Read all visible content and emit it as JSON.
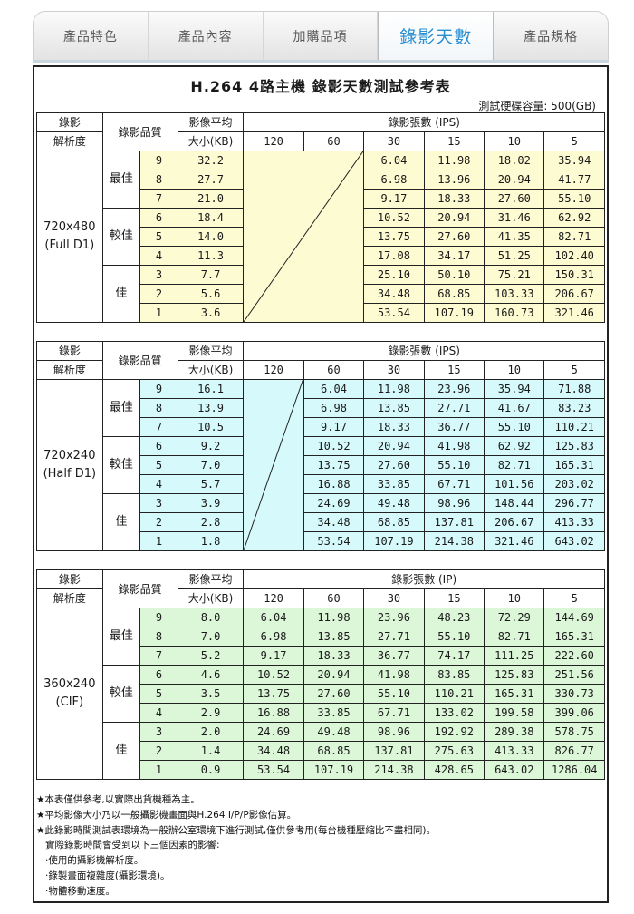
{
  "tabs": [
    {
      "label": "產品特色",
      "active": false
    },
    {
      "label": "產品內容",
      "active": false
    },
    {
      "label": "加購品項",
      "active": false
    },
    {
      "label": "錄影天數",
      "active": true
    },
    {
      "label": "產品規格",
      "active": false
    }
  ],
  "title": "H.264 4路主機 錄影天數測試參考表",
  "capacity": "測試硬碟容量: 500(GB)",
  "header": {
    "res_line1": "錄影",
    "res_line2": "解析度",
    "quality": "錄影品質",
    "avg_line1": "影像平均",
    "avg_line2": "大小(KB)",
    "fps_cols": [
      "120",
      "60",
      "30",
      "15",
      "10",
      "5"
    ]
  },
  "tables": [
    {
      "fps_title": "錄影張數 (IPS)",
      "resolution_line1": "720x480",
      "resolution_line2": "(Full D1)",
      "groups": [
        "最佳",
        "較佳",
        "佳"
      ],
      "rows": [
        {
          "q": "9",
          "avg": "32.2",
          "v": [
            "",
            "",
            "6.04",
            "11.98",
            "18.02",
            "35.94"
          ]
        },
        {
          "q": "8",
          "avg": "27.7",
          "v": [
            "",
            "",
            "6.98",
            "13.96",
            "20.94",
            "41.77"
          ]
        },
        {
          "q": "7",
          "avg": "21.0",
          "v": [
            "",
            "",
            "9.17",
            "18.33",
            "27.60",
            "55.10"
          ]
        },
        {
          "q": "6",
          "avg": "18.4",
          "v": [
            "",
            "",
            "10.52",
            "20.94",
            "31.46",
            "62.92"
          ]
        },
        {
          "q": "5",
          "avg": "14.0",
          "v": [
            "",
            "",
            "13.75",
            "27.60",
            "41.35",
            "82.71"
          ]
        },
        {
          "q": "4",
          "avg": "11.3",
          "v": [
            "",
            "",
            "17.08",
            "34.17",
            "51.25",
            "102.40"
          ]
        },
        {
          "q": "3",
          "avg": "7.7",
          "v": [
            "",
            "",
            "25.10",
            "50.10",
            "75.21",
            "150.31"
          ]
        },
        {
          "q": "2",
          "avg": "5.6",
          "v": [
            "",
            "",
            "34.48",
            "68.85",
            "103.33",
            "206.67"
          ]
        },
        {
          "q": "1",
          "avg": "3.6",
          "v": [
            "",
            "",
            "53.54",
            "107.19",
            "160.73",
            "321.46"
          ]
        }
      ]
    },
    {
      "fps_title": "錄影張數 (IPS)",
      "resolution_line1": "720x240",
      "resolution_line2": "(Half D1)",
      "groups": [
        "最佳",
        "較佳",
        "佳"
      ],
      "rows": [
        {
          "q": "9",
          "avg": "16.1",
          "v": [
            "",
            "6.04",
            "11.98",
            "23.96",
            "35.94",
            "71.88"
          ]
        },
        {
          "q": "8",
          "avg": "13.9",
          "v": [
            "",
            "6.98",
            "13.85",
            "27.71",
            "41.67",
            "83.23"
          ]
        },
        {
          "q": "7",
          "avg": "10.5",
          "v": [
            "",
            "9.17",
            "18.33",
            "36.77",
            "55.10",
            "110.21"
          ]
        },
        {
          "q": "6",
          "avg": "9.2",
          "v": [
            "",
            "10.52",
            "20.94",
            "41.98",
            "62.92",
            "125.83"
          ]
        },
        {
          "q": "5",
          "avg": "7.0",
          "v": [
            "",
            "13.75",
            "27.60",
            "55.10",
            "82.71",
            "165.31"
          ]
        },
        {
          "q": "4",
          "avg": "5.7",
          "v": [
            "",
            "16.88",
            "33.85",
            "67.71",
            "101.56",
            "203.02"
          ]
        },
        {
          "q": "3",
          "avg": "3.9",
          "v": [
            "",
            "24.69",
            "49.48",
            "98.96",
            "148.44",
            "296.77"
          ]
        },
        {
          "q": "2",
          "avg": "2.8",
          "v": [
            "",
            "34.48",
            "68.85",
            "137.81",
            "206.67",
            "413.33"
          ]
        },
        {
          "q": "1",
          "avg": "1.8",
          "v": [
            "",
            "53.54",
            "107.19",
            "214.38",
            "321.46",
            "643.02"
          ]
        }
      ]
    },
    {
      "fps_title": "錄影張數 (IP)",
      "resolution_line1": "360x240",
      "resolution_line2": "(CIF)",
      "groups": [
        "最佳",
        "較佳",
        "佳"
      ],
      "rows": [
        {
          "q": "9",
          "avg": "8.0",
          "v": [
            "6.04",
            "11.98",
            "23.96",
            "48.23",
            "72.29",
            "144.69"
          ]
        },
        {
          "q": "8",
          "avg": "7.0",
          "v": [
            "6.98",
            "13.85",
            "27.71",
            "55.10",
            "82.71",
            "165.31"
          ]
        },
        {
          "q": "7",
          "avg": "5.2",
          "v": [
            "9.17",
            "18.33",
            "36.77",
            "74.17",
            "111.25",
            "222.60"
          ]
        },
        {
          "q": "6",
          "avg": "4.6",
          "v": [
            "10.52",
            "20.94",
            "41.98",
            "83.85",
            "125.83",
            "251.56"
          ]
        },
        {
          "q": "5",
          "avg": "3.5",
          "v": [
            "13.75",
            "27.60",
            "55.10",
            "110.21",
            "165.31",
            "330.73"
          ]
        },
        {
          "q": "4",
          "avg": "2.9",
          "v": [
            "16.88",
            "33.85",
            "67.71",
            "133.02",
            "199.58",
            "399.06"
          ]
        },
        {
          "q": "3",
          "avg": "2.0",
          "v": [
            "24.69",
            "49.48",
            "98.96",
            "192.92",
            "289.38",
            "578.75"
          ]
        },
        {
          "q": "2",
          "avg": "1.4",
          "v": [
            "34.48",
            "68.85",
            "137.81",
            "275.63",
            "413.33",
            "826.77"
          ]
        },
        {
          "q": "1",
          "avg": "0.9",
          "v": [
            "53.54",
            "107.19",
            "214.38",
            "428.65",
            "643.02",
            "1286.04"
          ]
        }
      ]
    }
  ],
  "notes": [
    "★本表僅供參考,以實際出貨機種為主。",
    "★平均影像大小乃以一般攝影機畫面與H.264 I/P/P影像估算。",
    "★此錄影時間測試表環境為一般辦公室環境下進行測試,僅供參考用(每台機種壓縮比不盡相同)。",
    "實際錄影時間會受到以下三個因素的影響:",
    "‧使用的攝影機解析度。",
    "‧錄製畫面複雜度(攝影環境)。",
    "‧物體移動速度。"
  ],
  "colors": {
    "tab_active_text": "#2a8fd0",
    "table1_bg": "#fdfbd2",
    "table2_bg": "#d6fafb",
    "table3_bg": "#dcf6d8"
  }
}
